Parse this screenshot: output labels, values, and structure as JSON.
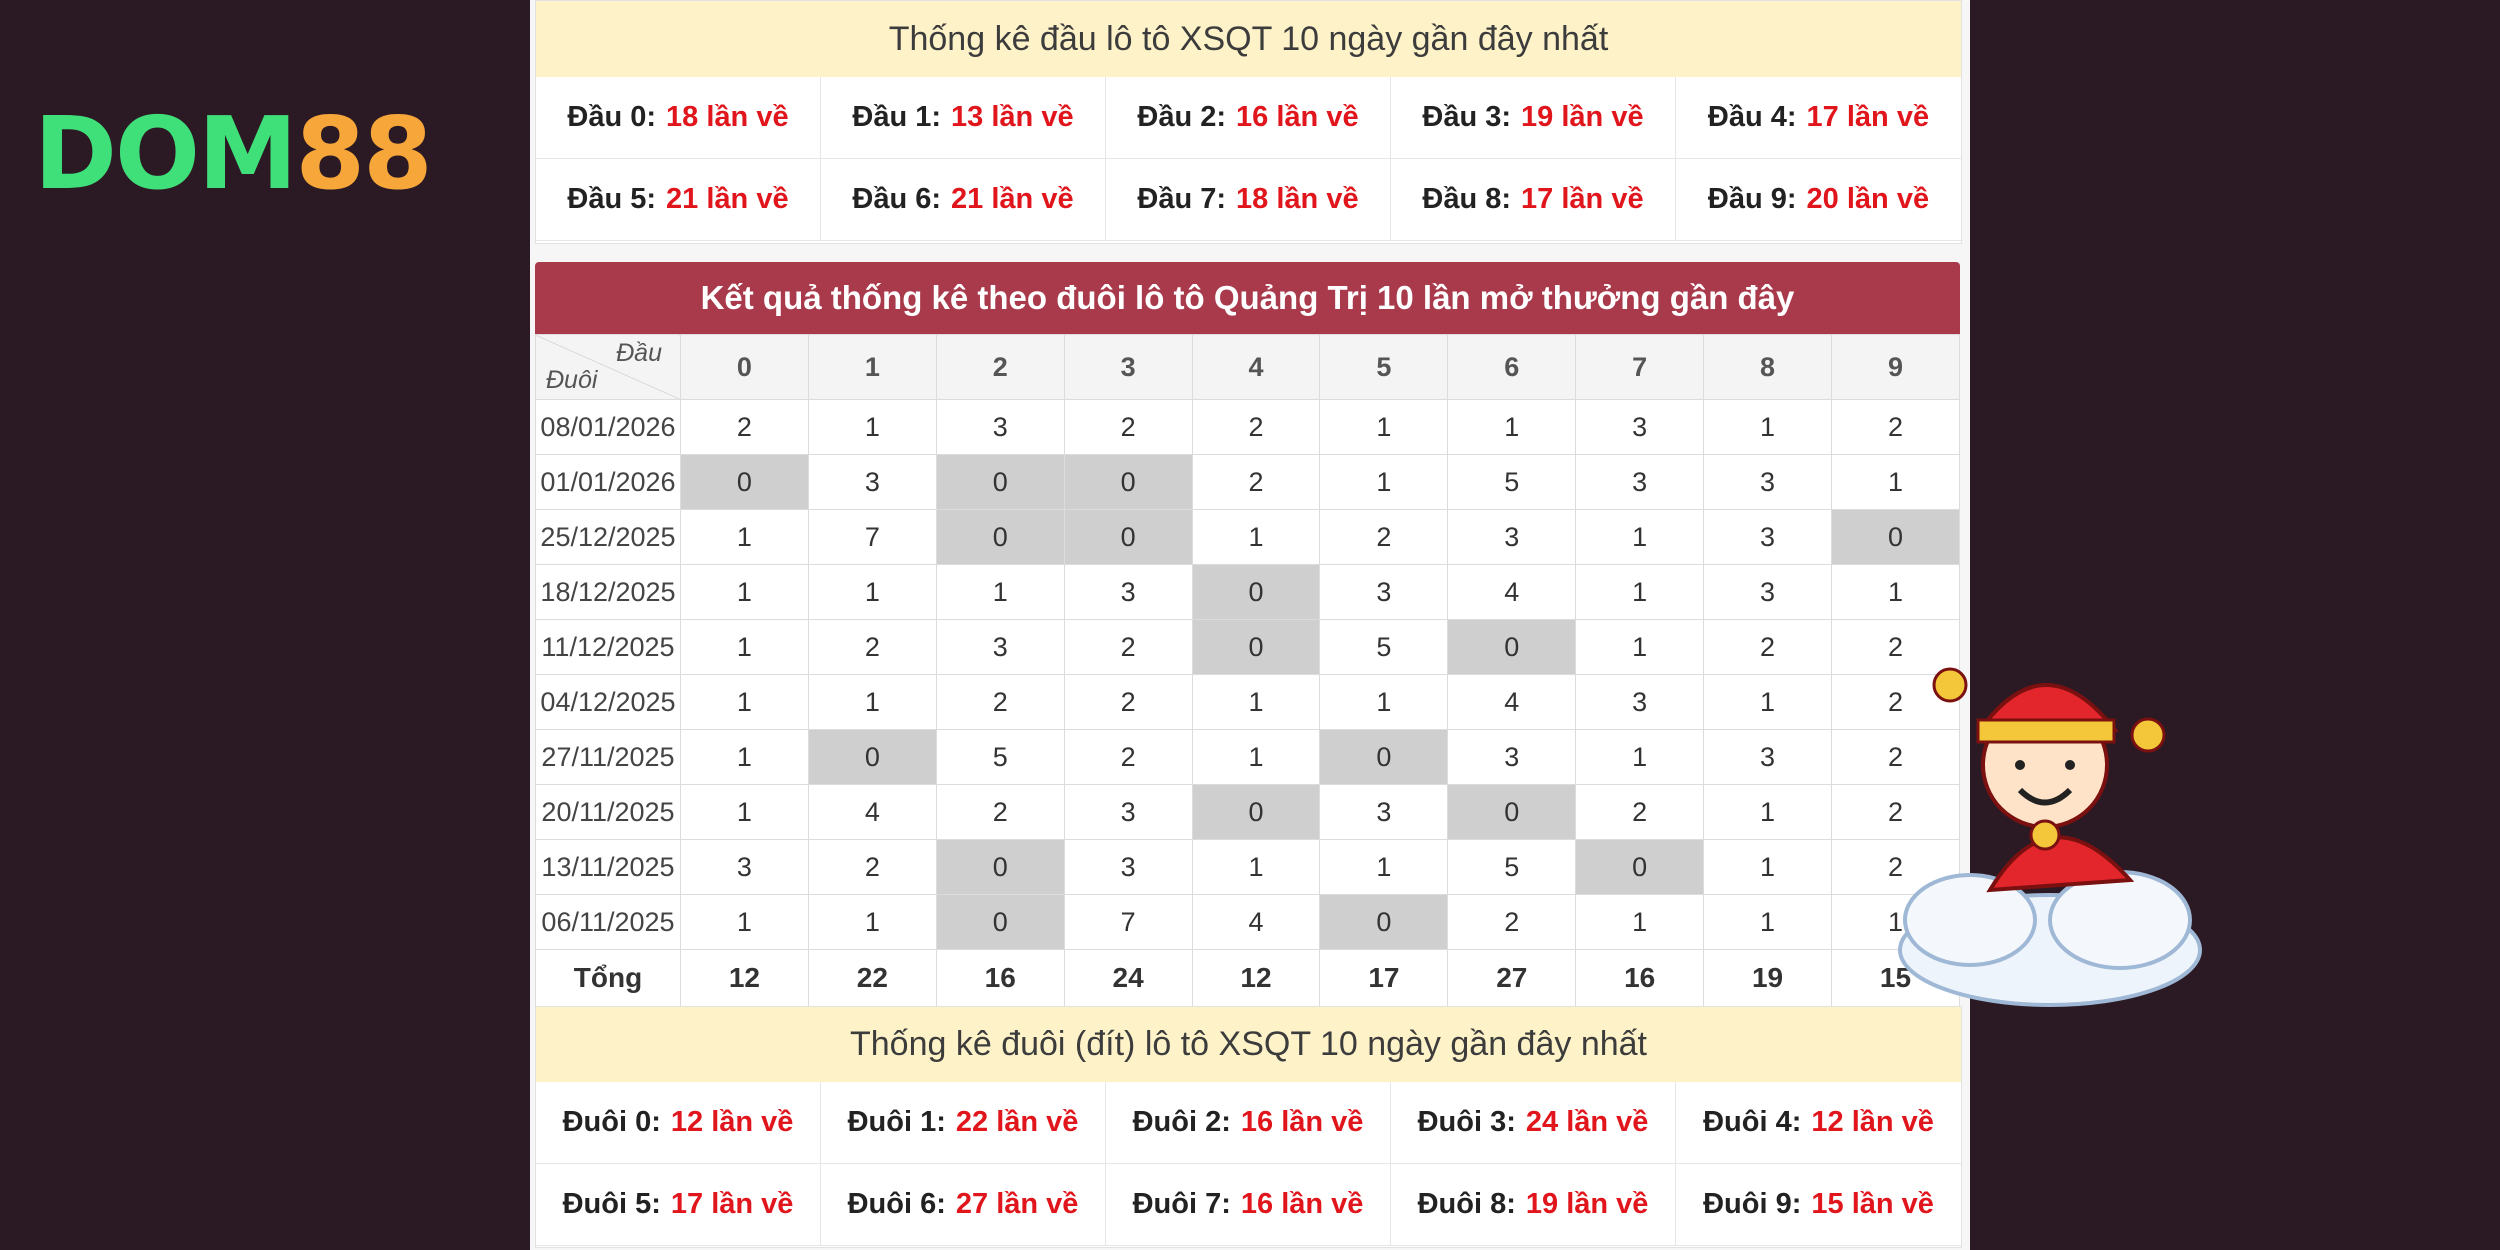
{
  "logo": {
    "part1": "DOM",
    "part2": "88"
  },
  "top_stats": {
    "title": "Thống kê đầu lô tô XSQT 10 ngày gần đây nhất",
    "items": [
      {
        "label": "Đầu 0:",
        "value": "18 lần về"
      },
      {
        "label": "Đầu 1:",
        "value": "13 lần về"
      },
      {
        "label": "Đầu 2:",
        "value": "16 lần về"
      },
      {
        "label": "Đầu 3:",
        "value": "19 lần về"
      },
      {
        "label": "Đầu 4:",
        "value": "17 lần về"
      },
      {
        "label": "Đầu 5:",
        "value": "21 lần về"
      },
      {
        "label": "Đầu 6:",
        "value": "21 lần về"
      },
      {
        "label": "Đầu 7:",
        "value": "18 lần về"
      },
      {
        "label": "Đầu 8:",
        "value": "17 lần về"
      },
      {
        "label": "Đầu 9:",
        "value": "20 lần về"
      }
    ]
  },
  "result_table": {
    "title": "Kết quả thống kê theo đuôi lô tô Quảng Trị 10 lần mở thưởng gần đây",
    "corner_top": "Đầu",
    "corner_bottom": "Đuôi",
    "columns": [
      "0",
      "1",
      "2",
      "3",
      "4",
      "5",
      "6",
      "7",
      "8",
      "9"
    ],
    "rows": [
      {
        "date": "08/01/2026",
        "values": [
          "2",
          "1",
          "3",
          "2",
          "2",
          "1",
          "1",
          "3",
          "1",
          "2"
        ]
      },
      {
        "date": "01/01/2026",
        "values": [
          "0",
          "3",
          "0",
          "0",
          "2",
          "1",
          "5",
          "3",
          "3",
          "1"
        ]
      },
      {
        "date": "25/12/2025",
        "values": [
          "1",
          "7",
          "0",
          "0",
          "1",
          "2",
          "3",
          "1",
          "3",
          "0"
        ]
      },
      {
        "date": "18/12/2025",
        "values": [
          "1",
          "1",
          "1",
          "3",
          "0",
          "3",
          "4",
          "1",
          "3",
          "1"
        ]
      },
      {
        "date": "11/12/2025",
        "values": [
          "1",
          "2",
          "3",
          "2",
          "0",
          "5",
          "0",
          "1",
          "2",
          "2"
        ]
      },
      {
        "date": "04/12/2025",
        "values": [
          "1",
          "1",
          "2",
          "2",
          "1",
          "1",
          "4",
          "3",
          "1",
          "2"
        ]
      },
      {
        "date": "27/11/2025",
        "values": [
          "1",
          "0",
          "5",
          "2",
          "1",
          "0",
          "3",
          "1",
          "3",
          "2"
        ]
      },
      {
        "date": "20/11/2025",
        "values": [
          "1",
          "4",
          "2",
          "3",
          "0",
          "3",
          "0",
          "2",
          "1",
          "2"
        ]
      },
      {
        "date": "13/11/2025",
        "values": [
          "3",
          "2",
          "0",
          "3",
          "1",
          "1",
          "5",
          "0",
          "1",
          "2"
        ]
      },
      {
        "date": "06/11/2025",
        "values": [
          "1",
          "1",
          "0",
          "7",
          "4",
          "0",
          "2",
          "1",
          "1",
          "1"
        ]
      }
    ],
    "total_label": "Tổng",
    "totals": [
      "12",
      "22",
      "16",
      "24",
      "12",
      "17",
      "27",
      "16",
      "19",
      "15"
    ]
  },
  "bottom_stats": {
    "title": "Thống kê đuôi (đít) lô tô XSQT 10 ngày gần đây nhất",
    "items": [
      {
        "label": "Đuôi 0:",
        "value": "12 lần về"
      },
      {
        "label": "Đuôi 1:",
        "value": "22 lần về"
      },
      {
        "label": "Đuôi 2:",
        "value": "16 lần về"
      },
      {
        "label": "Đuôi 3:",
        "value": "24 lần về"
      },
      {
        "label": "Đuôi 4:",
        "value": "12 lần về"
      },
      {
        "label": "Đuôi 5:",
        "value": "17 lần về"
      },
      {
        "label": "Đuôi 6:",
        "value": "27 lần về"
      },
      {
        "label": "Đuôi 7:",
        "value": "16 lần về"
      },
      {
        "label": "Đuôi 8:",
        "value": "19 lần về"
      },
      {
        "label": "Đuôi 9:",
        "value": "15 lần về"
      }
    ]
  },
  "colors": {
    "header_red": "#a83a4c",
    "value_red": "#e0161c",
    "highlight_gray": "#cfcfcf",
    "title_yellow": "#fdf2c8"
  },
  "mascot": {
    "icon": "god-of-wealth-mascot-icon"
  }
}
